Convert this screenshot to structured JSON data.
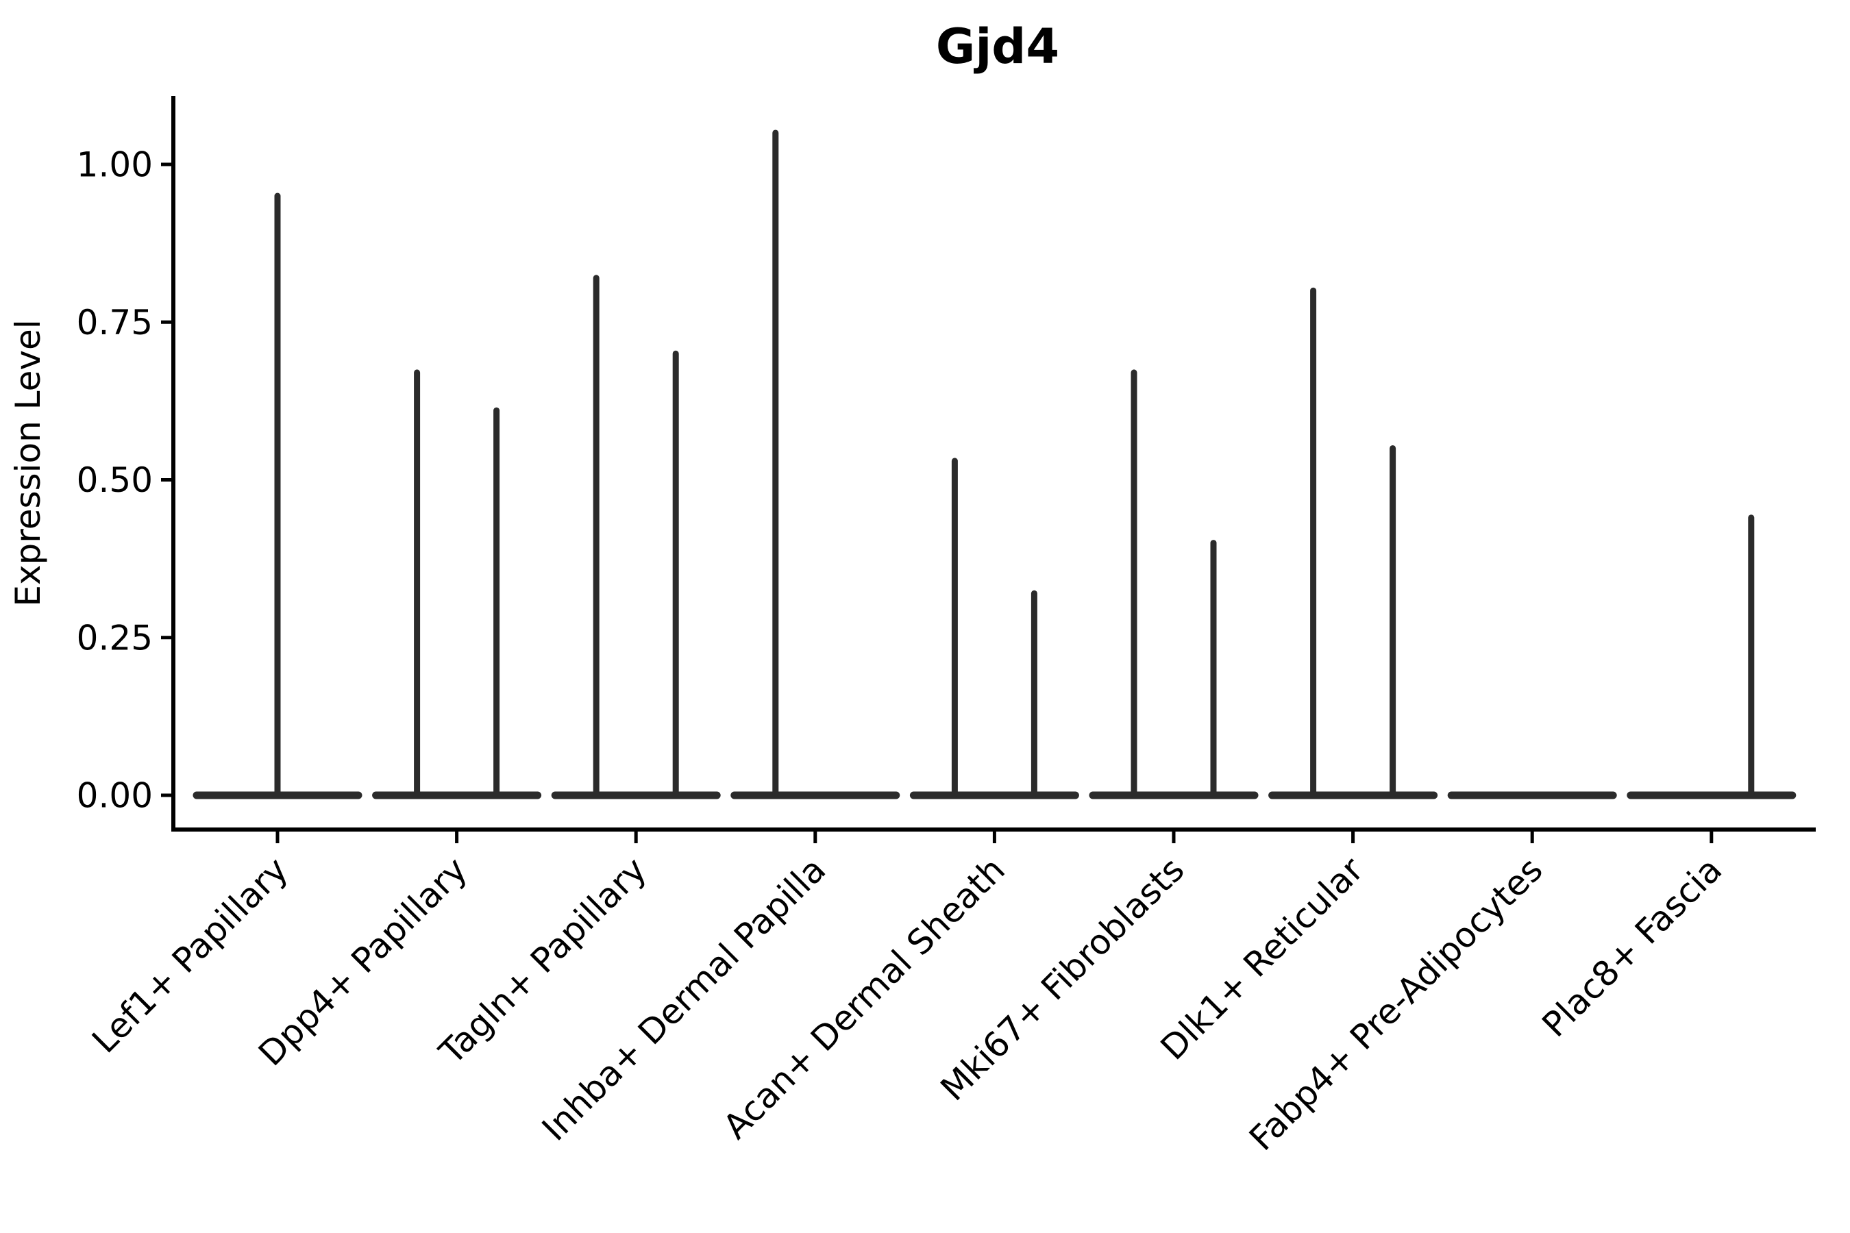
{
  "figure": {
    "title": "Gjd4",
    "ylabel": "Expression Level"
  },
  "chart_data": {
    "type": "violin",
    "title": "Gjd4",
    "xlabel": "",
    "ylabel": "Expression Level",
    "ylim": [
      -0.05,
      1.11
    ],
    "yticks": [
      0.0,
      0.25,
      0.5,
      0.75,
      1.0
    ],
    "ytick_labels": [
      "0.00",
      "0.25",
      "0.50",
      "0.75",
      "1.00"
    ],
    "grid": false,
    "legend_position": "none",
    "x_tick_label_rotation_deg": 45,
    "categories": [
      "Lef1+ Papillary",
      "Dpp4+ Papillary",
      "Tagln+ Papillary",
      "Inhba+ Dermal Papilla",
      "Acan+ Dermal Sheath",
      "Mki67+ Fibroblasts",
      "Dlk1+ Reticular",
      "Fabp4+ Pre-Adipocytes",
      "Plac8+ Fascia"
    ],
    "violins": [
      {
        "category": "Lef1+ Papillary",
        "baseline_value": 0.0,
        "tails": [
          {
            "pos": "center",
            "max": 0.95
          }
        ]
      },
      {
        "category": "Dpp4+ Papillary",
        "baseline_value": 0.0,
        "tails": [
          {
            "pos": "left",
            "max": 0.67
          },
          {
            "pos": "right",
            "max": 0.61
          }
        ]
      },
      {
        "category": "Tagln+ Papillary",
        "baseline_value": 0.0,
        "tails": [
          {
            "pos": "left",
            "max": 0.82
          },
          {
            "pos": "right",
            "max": 0.7
          }
        ]
      },
      {
        "category": "Inhba+ Dermal Papilla",
        "baseline_value": 0.0,
        "tails": [
          {
            "pos": "left",
            "max": 1.05
          }
        ]
      },
      {
        "category": "Acan+ Dermal Sheath",
        "baseline_value": 0.0,
        "tails": [
          {
            "pos": "left",
            "max": 0.53
          },
          {
            "pos": "right",
            "max": 0.32
          }
        ]
      },
      {
        "category": "Mki67+ Fibroblasts",
        "baseline_value": 0.0,
        "tails": [
          {
            "pos": "left",
            "max": 0.67
          },
          {
            "pos": "right",
            "max": 0.4
          }
        ]
      },
      {
        "category": "Dlk1+ Reticular",
        "baseline_value": 0.0,
        "tails": [
          {
            "pos": "left",
            "max": 0.8
          },
          {
            "pos": "right",
            "max": 0.55
          }
        ]
      },
      {
        "category": "Fabp4+ Pre-Adipocytes",
        "baseline_value": 0.0,
        "tails": []
      },
      {
        "category": "Plac8+ Fascia",
        "baseline_value": 0.0,
        "tails": [
          {
            "pos": "right",
            "max": 0.44
          }
        ]
      }
    ],
    "colors": {
      "violin": "#2b2b2b",
      "axis": "#000000",
      "text": "#000000",
      "background": "#ffffff"
    }
  }
}
